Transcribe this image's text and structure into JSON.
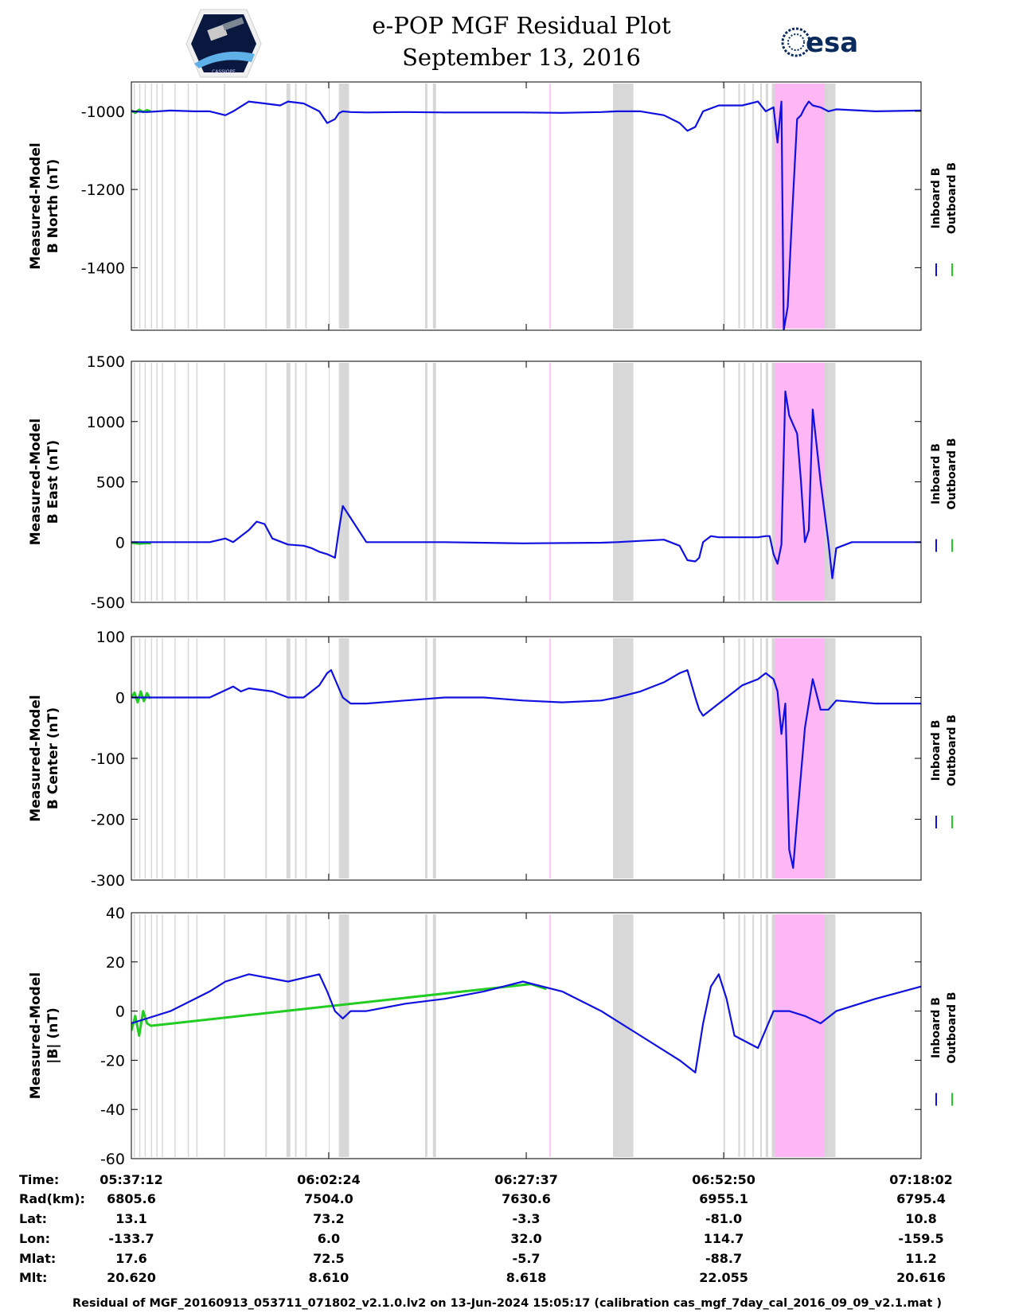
{
  "header": {
    "title_line1": "e-POP MGF Residual Plot",
    "title_line2": "September 13, 2016",
    "logo_left_text": "CASSIOPE",
    "logo_right_text": "esa"
  },
  "colors": {
    "inboard": "#1010e0",
    "outboard": "#22cc22",
    "gap": "#d6d6d6",
    "event": "#ffb6f4",
    "axis": "#000000"
  },
  "legend": {
    "inboard": "Inboard B",
    "outboard": "Outboard B"
  },
  "footer_table": {
    "row_labels": [
      "Time:",
      "Rad(km):",
      "Lat:",
      "Lon:",
      "Mlat:",
      "Mlt:"
    ],
    "columns": [
      [
        "05:37:12",
        "6805.6",
        "13.1",
        "-133.7",
        "17.6",
        "20.620"
      ],
      [
        "06:02:24",
        "7504.0",
        "73.2",
        "6.0",
        "72.5",
        "8.610"
      ],
      [
        "06:27:37",
        "7630.6",
        "-3.3",
        "32.0",
        "-5.7",
        "8.618"
      ],
      [
        "06:52:50",
        "6955.1",
        "-81.0",
        "114.7",
        "-88.7",
        "22.055"
      ],
      [
        "07:18:02",
        "6795.4",
        "10.8",
        "-159.5",
        "11.2",
        "20.616"
      ]
    ]
  },
  "footnote": "Residual of MGF_20160913_053711_071802_v2.1.0.lv2 on 13-Jun-2024 15:05:17 (calibration cas_mgf_7day_cal_2016_09_09_v2.1.mat )",
  "chart_data": {
    "x_unit": "minutes since 05:37:12",
    "xlim": [
      0,
      100.83
    ],
    "x_ticks": [
      0,
      25.2,
      50.42,
      75.63,
      100.83
    ],
    "gray_gaps": [
      [
        0.3,
        0.45
      ],
      [
        1.0,
        1.15
      ],
      [
        1.7,
        1.85
      ],
      [
        2.5,
        2.65
      ],
      [
        3.2,
        3.35
      ],
      [
        3.9,
        4.05
      ],
      [
        5.5,
        5.65
      ],
      [
        7.2,
        7.35
      ],
      [
        8.3,
        8.45
      ],
      [
        11.8,
        12.0
      ],
      [
        17.1,
        17.3
      ],
      [
        19.8,
        20.3
      ],
      [
        20.9,
        21.1
      ],
      [
        22.2,
        22.4
      ],
      [
        27.2,
        27.5
      ],
      [
        37.5,
        37.8
      ],
      [
        38.6,
        38.9
      ],
      [
        25.2,
        25.25
      ],
      [
        26.5,
        27.8
      ],
      [
        38.5,
        38.8
      ],
      [
        61.5,
        64.1
      ],
      [
        75.6,
        75.8
      ],
      [
        77.5,
        77.7
      ],
      [
        78.2,
        78.4
      ],
      [
        79.3,
        79.5
      ],
      [
        80.3,
        80.5
      ],
      [
        81.0,
        81.3
      ],
      [
        81.8,
        82.2
      ],
      [
        88.5,
        89.9
      ]
    ],
    "pink_bands": [
      [
        53.4,
        53.55
      ],
      [
        81.8,
        89.0
      ]
    ],
    "panels": [
      {
        "ylabel_line1": "Measured-Model",
        "ylabel_line2": "B North (nT)",
        "ylim": [
          -1560,
          -925
        ],
        "yticks": [
          -1000,
          -1200,
          -1400
        ],
        "series": [
          {
            "name": "Inboard B",
            "x": [
              0,
              2,
              5,
              8,
              10,
              12,
              13,
              15,
              17,
              19,
              20,
              22,
              24,
              25,
              26,
              26.5,
              27,
              28,
              30,
              35,
              40,
              45,
              50,
              55,
              60,
              62,
              65,
              68,
              70,
              71,
              72,
              73,
              75,
              78,
              80,
              81,
              82,
              82.5,
              83,
              83.3,
              83.8,
              84.3,
              85,
              85.5,
              86,
              86.5,
              87,
              88,
              89,
              90,
              95,
              100.83
            ],
            "y": [
              -1000,
              -1002,
              -998,
              -1000,
              -1000,
              -1010,
              -1000,
              -975,
              -980,
              -985,
              -975,
              -980,
              -1000,
              -1030,
              -1020,
              -1005,
              -1000,
              -1002,
              -1003,
              -1002,
              -1003,
              -1003,
              -1003,
              -1004,
              -1002,
              -1000,
              -1000,
              -1010,
              -1030,
              -1050,
              -1040,
              -1000,
              -985,
              -985,
              -975,
              -1000,
              -990,
              -1080,
              -975,
              -1560,
              -1500,
              -1290,
              -1020,
              -1010,
              -990,
              -975,
              -985,
              -990,
              -1000,
              -995,
              -1000,
              -998
            ]
          },
          {
            "name": "Outboard B",
            "x": [
              0,
              0.5,
              1,
              1.5,
              2,
              2.5
            ],
            "y": [
              -998,
              -1004,
              -996,
              -1002,
              -997,
              -1001
            ]
          }
        ]
      },
      {
        "ylabel_line1": "Measured-Model",
        "ylabel_line2": "B East (nT)",
        "ylim": [
          -500,
          1500
        ],
        "yticks": [
          1500,
          1000,
          500,
          0,
          -500
        ],
        "series": [
          {
            "name": "Inboard B",
            "x": [
              0,
              3,
              6,
              10,
              12,
              13,
              14,
              15,
              16,
              17,
              18,
              20,
              22,
              23,
              24,
              25,
              26,
              26.5,
              27,
              28,
              30,
              40,
              50,
              60,
              62,
              65,
              68,
              70,
              71,
              72,
              72.5,
              73,
              74,
              75,
              76,
              77,
              79,
              80,
              81,
              81.5,
              82,
              82.5,
              83,
              83.5,
              84,
              85,
              85.5,
              86,
              86.5,
              87,
              88,
              89,
              89.5,
              90,
              92,
              95,
              100.83
            ],
            "y": [
              0,
              0,
              0,
              0,
              30,
              0,
              50,
              100,
              170,
              150,
              30,
              -20,
              -30,
              -50,
              -80,
              -100,
              -130,
              100,
              300,
              200,
              0,
              0,
              -10,
              -5,
              0,
              10,
              20,
              -30,
              -150,
              -160,
              -130,
              0,
              50,
              40,
              40,
              40,
              40,
              40,
              50,
              50,
              -100,
              -180,
              -20,
              1250,
              1050,
              900,
              500,
              0,
              100,
              1100,
              500,
              0,
              -300,
              -50,
              0,
              0,
              0
            ]
          },
          {
            "name": "Outboard B",
            "x": [
              0,
              1,
              2,
              2.5
            ],
            "y": [
              -5,
              -12,
              -8,
              -10
            ]
          }
        ]
      },
      {
        "ylabel_line1": "Measured-Model",
        "ylabel_line2": "B Center (nT)",
        "ylim": [
          -300,
          100
        ],
        "yticks": [
          100,
          0,
          -100,
          -200,
          -300
        ],
        "series": [
          {
            "name": "Inboard B",
            "x": [
              0,
              5,
              10,
              13,
              14,
              15,
              18,
              20,
              22,
              23,
              24,
              25,
              25.5,
              26,
              27,
              28,
              30,
              35,
              40,
              45,
              50,
              55,
              60,
              62,
              65,
              68,
              70,
              71,
              72,
              72.5,
              73,
              75,
              78,
              80,
              81,
              82,
              82.5,
              83,
              83.5,
              84,
              84.5,
              85,
              86,
              87,
              88,
              89,
              90,
              95,
              100.83
            ],
            "y": [
              0,
              0,
              0,
              18,
              10,
              15,
              10,
              0,
              0,
              10,
              20,
              40,
              45,
              30,
              0,
              -10,
              -10,
              -5,
              0,
              0,
              -5,
              -8,
              -5,
              0,
              10,
              25,
              40,
              45,
              0,
              -20,
              -30,
              -10,
              20,
              30,
              40,
              30,
              10,
              -60,
              -10,
              -250,
              -280,
              -200,
              -50,
              30,
              -20,
              -20,
              -5,
              -10,
              -10
            ]
          },
          {
            "name": "Outboard B",
            "x": [
              0,
              0.4,
              0.8,
              1.2,
              1.6,
              2,
              2.4
            ],
            "y": [
              0,
              8,
              -8,
              10,
              -6,
              7,
              -2
            ]
          }
        ]
      },
      {
        "ylabel_line1": "Measured-Model",
        "ylabel_line2": "|B| (nT)",
        "ylim": [
          -60,
          40
        ],
        "yticks": [
          40,
          20,
          0,
          -20,
          -40,
          -60
        ],
        "series": [
          {
            "name": "Inboard B",
            "x": [
              0,
              5,
              10,
              12,
              15,
              20,
              24,
              25,
              26,
              27,
              28,
              30,
              35,
              40,
              45,
              50,
              55,
              60,
              65,
              70,
              72,
              73,
              74,
              75,
              76,
              77,
              80,
              82,
              84,
              86,
              88,
              90,
              95,
              100.83
            ],
            "y": [
              -5,
              0,
              8,
              12,
              15,
              12,
              15,
              8,
              0,
              -3,
              0,
              0,
              3,
              5,
              8,
              12,
              8,
              0,
              -10,
              -20,
              -25,
              -5,
              10,
              15,
              5,
              -10,
              -15,
              0,
              0,
              -2,
              -5,
              0,
              5,
              10
            ]
          },
          {
            "name": "Outboard B",
            "x": [
              0,
              0.5,
              1,
              1.5,
              2,
              2.5,
              51,
              52,
              53
            ],
            "y": [
              -8,
              -2,
              -10,
              0,
              -5,
              -6,
              11,
              10,
              9
            ]
          }
        ]
      }
    ]
  }
}
